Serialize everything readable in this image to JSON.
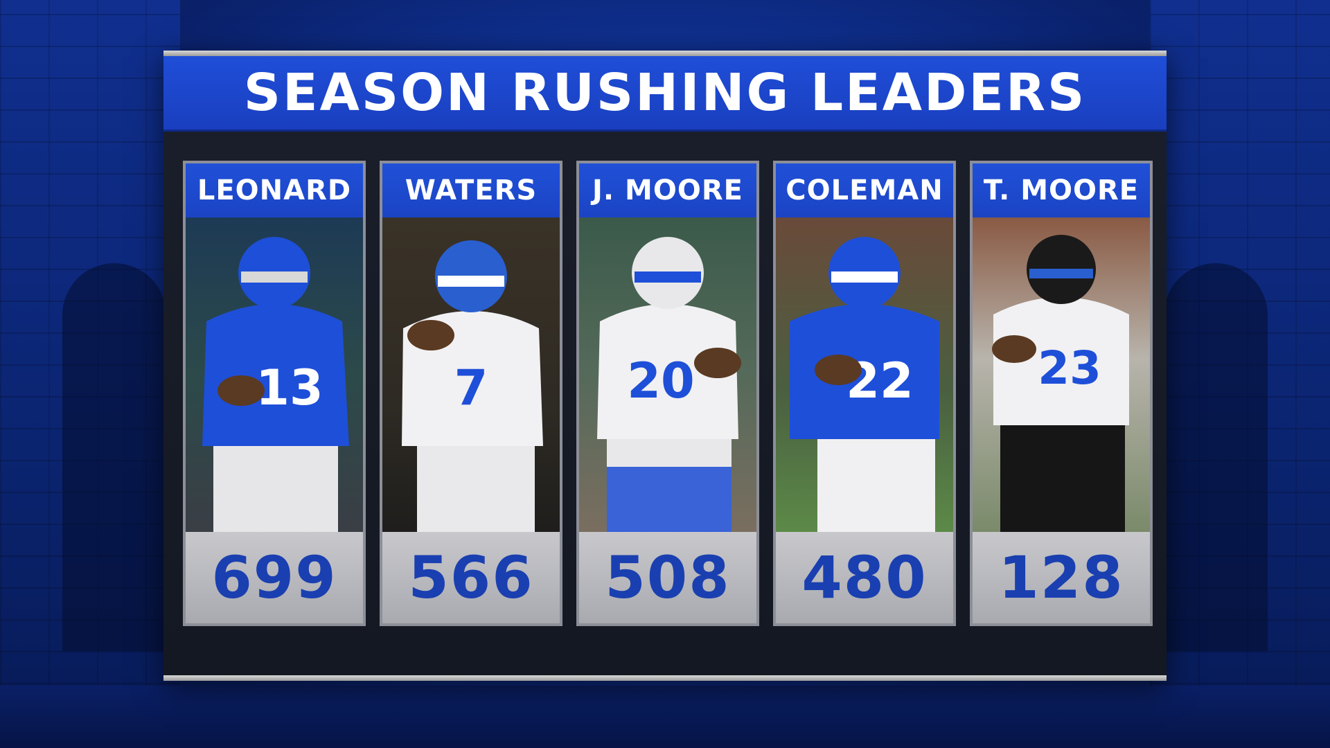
{
  "title": "SEASON RUSHING LEADERS",
  "players": [
    {
      "name": "LEONARD",
      "yards": "699",
      "jersey": "13",
      "uniform": "blue",
      "helmet": "#1e4fd8"
    },
    {
      "name": "WATERS",
      "yards": "566",
      "jersey": "7",
      "uniform": "white",
      "helmet": "#2a5fd0"
    },
    {
      "name": "J. MOORE",
      "yards": "508",
      "jersey": "20",
      "uniform": "white",
      "helmet": "#e8e8ea"
    },
    {
      "name": "COLEMAN",
      "yards": "480",
      "jersey": "22",
      "uniform": "blue",
      "helmet": "#1e4fd8"
    },
    {
      "name": "T. MOORE",
      "yards": "128",
      "jersey": "23",
      "uniform": "white-black",
      "helmet": "#1a1a1a"
    }
  ],
  "colors": {
    "accent": "#1f4ed8",
    "stat_text": "#1a3fb0",
    "board": "#1b1f2b"
  }
}
